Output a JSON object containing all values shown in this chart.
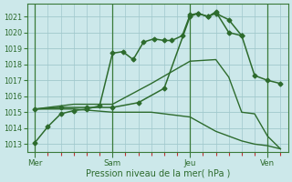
{
  "background_color": "#cce8ea",
  "grid_color": "#a0c8cc",
  "line_color": "#2d6b2d",
  "xlabel": "Pression niveau de la mer( hPa )",
  "ylim": [
    1012.5,
    1021.8
  ],
  "xlim": [
    -0.3,
    9.8
  ],
  "yticks": [
    1013,
    1014,
    1015,
    1016,
    1017,
    1018,
    1019,
    1020,
    1021
  ],
  "day_positions": [
    0,
    3,
    6,
    9
  ],
  "day_labels": [
    "Mer",
    "Sam",
    "Jeu",
    "Ven"
  ],
  "series": [
    {
      "x": [
        0,
        0.5,
        1.0,
        1.5,
        2.0,
        2.5,
        3.0,
        3.4,
        3.8,
        4.2,
        4.6,
        5.0,
        5.3,
        5.7,
        6.0,
        6.3,
        6.7,
        7.0,
        7.5,
        8.0
      ],
      "y": [
        1013.1,
        1014.1,
        1014.9,
        1015.1,
        1015.2,
        1015.4,
        1018.7,
        1018.8,
        1018.3,
        1019.4,
        1019.6,
        1019.5,
        1019.5,
        1019.8,
        1021.1,
        1021.2,
        1021.0,
        1021.2,
        1020.8,
        1019.8
      ],
      "marker": "D",
      "markersize": 2.5,
      "linewidth": 1.1
    },
    {
      "x": [
        0,
        1.0,
        2.0,
        3.0,
        4.0,
        5.0,
        6.0,
        6.3,
        6.7,
        7.0,
        7.5,
        8.0,
        8.5,
        9.0,
        9.5
      ],
      "y": [
        1015.2,
        1015.3,
        1015.3,
        1015.3,
        1015.6,
        1016.5,
        1021.0,
        1021.2,
        1021.0,
        1021.3,
        1020.0,
        1019.8,
        1017.3,
        1017.0,
        1016.8
      ],
      "marker": "D",
      "markersize": 2.5,
      "linewidth": 1.1
    },
    {
      "x": [
        0,
        1.5,
        3.0,
        4.5,
        6.0,
        7.0,
        7.5,
        8.0,
        8.5,
        9.0,
        9.5
      ],
      "y": [
        1015.2,
        1015.5,
        1015.5,
        1016.8,
        1018.2,
        1018.3,
        1017.2,
        1015.0,
        1014.9,
        1013.5,
        1012.7
      ],
      "marker": null,
      "markersize": 0,
      "linewidth": 1.0
    },
    {
      "x": [
        0,
        1.5,
        3.0,
        4.5,
        6.0,
        7.0,
        7.5,
        8.0,
        8.5,
        9.0,
        9.5
      ],
      "y": [
        1015.2,
        1015.2,
        1015.0,
        1015.0,
        1014.7,
        1013.8,
        1013.5,
        1013.2,
        1013.0,
        1012.9,
        1012.7
      ],
      "marker": null,
      "markersize": 0,
      "linewidth": 1.0
    }
  ],
  "vlines": [
    0,
    3,
    6,
    9
  ],
  "vline_color": "#3a7a3a",
  "minor_tick_color": "#bb3333",
  "major_tick_color": "#3a7a3a",
  "ylabel_fontsize": 6.5,
  "xlabel_fontsize": 7.0,
  "ytick_fontsize": 5.8,
  "xtick_fontsize": 6.2
}
